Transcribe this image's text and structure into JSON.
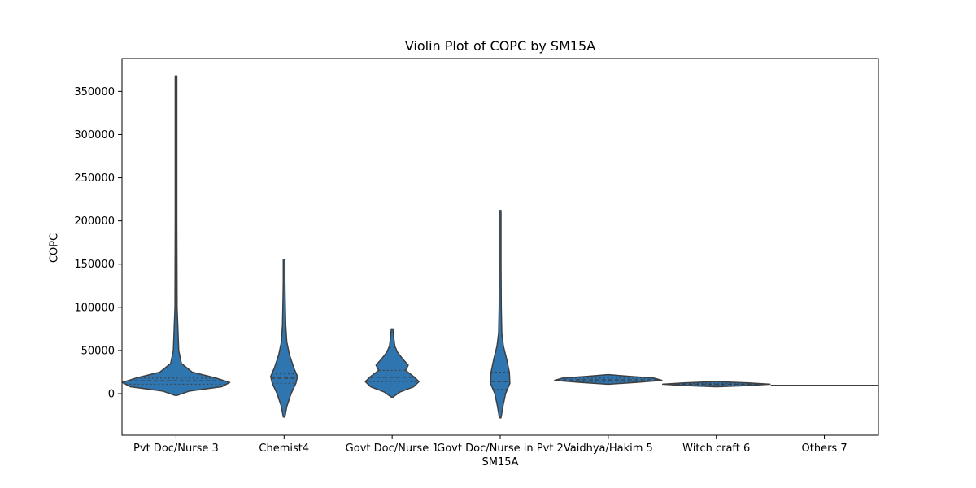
{
  "chart_data": {
    "type": "violin",
    "title": "Violin Plot of COPC by SM15A",
    "xlabel": "SM15A",
    "ylabel": "COPC",
    "categories": [
      "Pvt Doc/Nurse 3",
      "Chemist4",
      "Govt Doc/Nurse 1",
      "Govt Doc/Nurse in Pvt 2",
      "Vaidhya/Hakim 5",
      "Witch craft 6",
      "Others 7"
    ],
    "yticks": [
      0,
      50000,
      100000,
      150000,
      200000,
      250000,
      300000,
      350000
    ],
    "ytick_labels": [
      "0",
      "50000",
      "100000",
      "150000",
      "200000",
      "250000",
      "300000",
      "350000"
    ],
    "ylim": [
      -48000,
      388000
    ],
    "color": "#2f75b0",
    "edge_color": "#3f3f3f",
    "violins": [
      {
        "category": "Pvt Doc/Nurse 3",
        "min": -2000,
        "max": 368000,
        "q1": 11000,
        "median": 15000,
        "q3": 18000,
        "profile": [
          [
            -2000,
            0.02
          ],
          [
            3000,
            0.25
          ],
          [
            8000,
            0.85
          ],
          [
            13000,
            1.0
          ],
          [
            18000,
            0.75
          ],
          [
            25000,
            0.3
          ],
          [
            35000,
            0.1
          ],
          [
            50000,
            0.05
          ],
          [
            100000,
            0.02
          ],
          [
            200000,
            0.015
          ],
          [
            368000,
            0.01
          ]
        ]
      },
      {
        "category": "Chemist4",
        "min": -27000,
        "max": 155000,
        "q1": 12000,
        "median": 18000,
        "q3": 23000,
        "profile": [
          [
            -27000,
            0.01
          ],
          [
            -15000,
            0.05
          ],
          [
            0,
            0.13
          ],
          [
            12000,
            0.22
          ],
          [
            20000,
            0.25
          ],
          [
            30000,
            0.18
          ],
          [
            45000,
            0.1
          ],
          [
            60000,
            0.05
          ],
          [
            80000,
            0.03
          ],
          [
            110000,
            0.02
          ],
          [
            130000,
            0.015
          ],
          [
            155000,
            0.01
          ]
        ]
      },
      {
        "category": "Govt Doc/Nurse 1",
        "min": -4000,
        "max": 75000,
        "q1": 14000,
        "median": 19000,
        "q3": 27000,
        "profile": [
          [
            -4000,
            0.01
          ],
          [
            2000,
            0.15
          ],
          [
            8000,
            0.4
          ],
          [
            14000,
            0.5
          ],
          [
            20000,
            0.4
          ],
          [
            27000,
            0.25
          ],
          [
            33000,
            0.3
          ],
          [
            40000,
            0.2
          ],
          [
            48000,
            0.1
          ],
          [
            55000,
            0.05
          ],
          [
            65000,
            0.03
          ],
          [
            75000,
            0.01
          ]
        ]
      },
      {
        "category": "Govt Doc/Nurse in Pvt 2",
        "min": -28000,
        "max": 212000,
        "q1": 5000,
        "median": 14000,
        "q3": 25000,
        "profile": [
          [
            -28000,
            0.01
          ],
          [
            -15000,
            0.05
          ],
          [
            0,
            0.1
          ],
          [
            12000,
            0.18
          ],
          [
            25000,
            0.17
          ],
          [
            40000,
            0.12
          ],
          [
            55000,
            0.06
          ],
          [
            70000,
            0.03
          ],
          [
            100000,
            0.02
          ],
          [
            150000,
            0.015
          ],
          [
            212000,
            0.01
          ]
        ]
      },
      {
        "category": "Vaidhya/Hakim 5",
        "min": 11000,
        "max": 22000,
        "q1": 14000,
        "median": 16000,
        "q3": 18000,
        "profile": [
          [
            11000,
            0.01
          ],
          [
            13000,
            0.5
          ],
          [
            15500,
            1.0
          ],
          [
            18000,
            0.85
          ],
          [
            20000,
            0.4
          ],
          [
            22000,
            0.01
          ]
        ]
      },
      {
        "category": "Witch craft 6",
        "min": 8000,
        "max": 14000,
        "q1": 10000,
        "median": 11000,
        "q3": 12000,
        "profile": [
          [
            8000,
            0.01
          ],
          [
            9500,
            0.6
          ],
          [
            11000,
            1.0
          ],
          [
            12500,
            0.6
          ],
          [
            14000,
            0.01
          ]
        ]
      },
      {
        "category": "Others 7",
        "min": 9500,
        "max": 9500,
        "q1": 9500,
        "median": 9500,
        "q3": 9500,
        "profile": [
          [
            9500,
            1.0
          ]
        ]
      }
    ]
  }
}
